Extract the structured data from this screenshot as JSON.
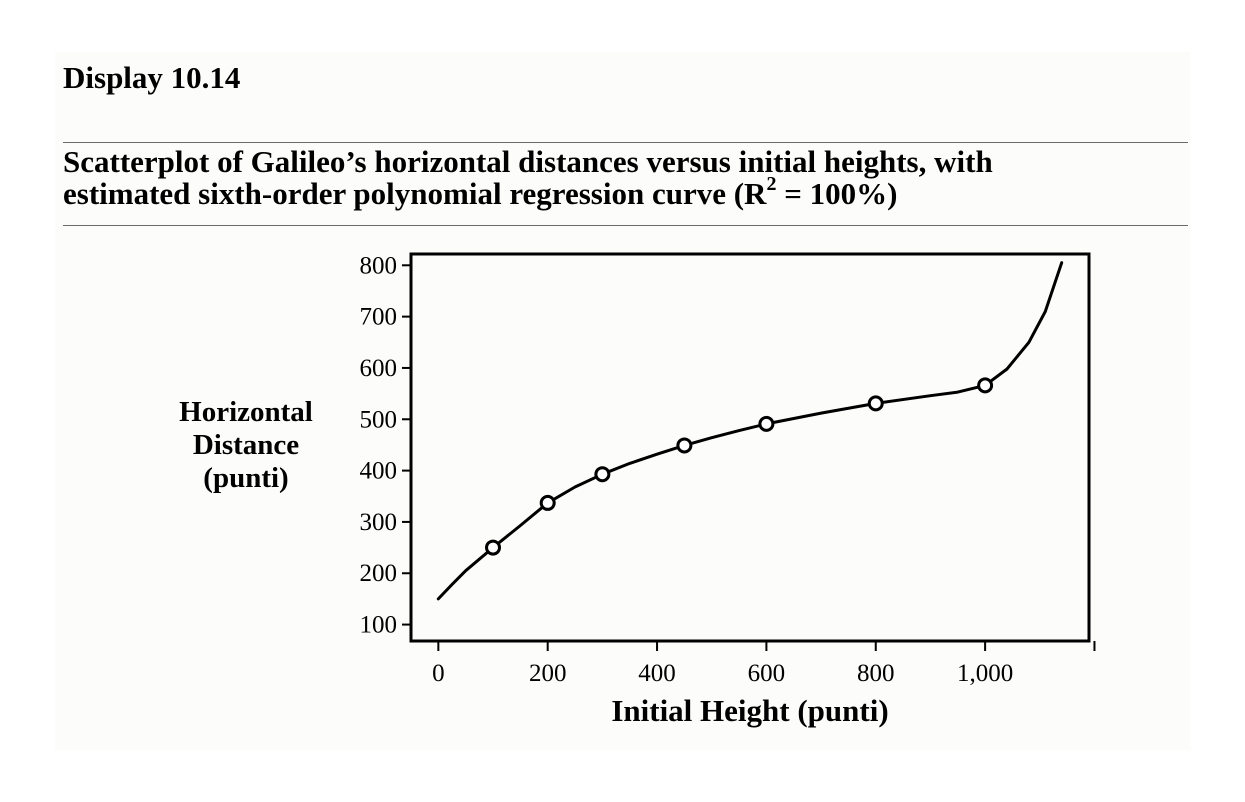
{
  "display_label": "Display 10.14",
  "caption": {
    "line1": "Scatterplot of Galileo’s horizontal distances versus initial heights, with",
    "line2_before_sup": "estimated sixth-order polynomial regression curve (R",
    "line2_sup": "2",
    "line2_after_sup": " = 100%)"
  },
  "chart_data": {
    "type": "scatter",
    "points": {
      "x": [
        100,
        200,
        300,
        450,
        600,
        800,
        1000
      ],
      "y": [
        250,
        337,
        393,
        449,
        491,
        531,
        566
      ]
    },
    "fitted_curve": {
      "x": [
        0,
        25,
        50,
        100,
        150,
        200,
        250,
        300,
        350,
        400,
        450,
        500,
        550,
        600,
        700,
        800,
        900,
        950,
        1000,
        1040,
        1080,
        1110,
        1140
      ],
      "y": [
        150,
        178,
        205,
        250,
        293,
        337,
        368,
        393,
        414,
        432,
        449,
        464,
        478,
        491,
        512,
        531,
        546,
        553,
        566,
        598,
        650,
        710,
        805
      ]
    },
    "xlabel": "Initial Height (punti)",
    "ylabel_lines": [
      "Horizontal",
      "Distance",
      "(punti)"
    ],
    "xticks": [
      0,
      200,
      400,
      600,
      800,
      1000,
      1200
    ],
    "xtick_labels": [
      "0",
      "200",
      "400",
      "600",
      "800",
      "1,000",
      ""
    ],
    "yticks": [
      100,
      200,
      300,
      400,
      500,
      600,
      700,
      800
    ],
    "ytick_labels": [
      "100",
      "200",
      "300",
      "400",
      "500",
      "600",
      "700",
      "800"
    ],
    "xlim": [
      -50,
      1190
    ],
    "ylim": [
      68,
      822
    ],
    "grid": false,
    "legend": false,
    "marker": "open-circle"
  }
}
